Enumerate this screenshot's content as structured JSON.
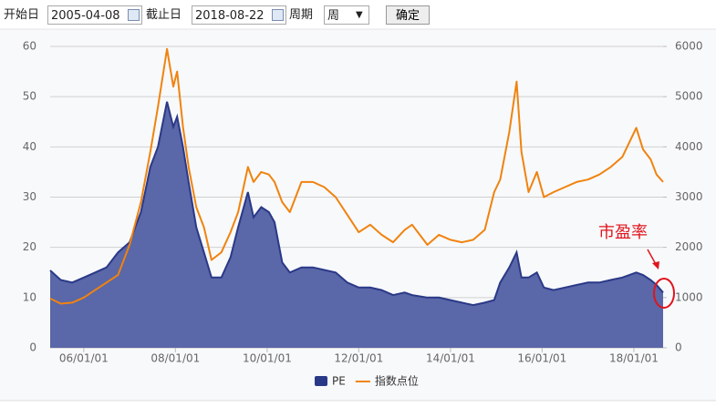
{
  "form": {
    "start_label": "开始日",
    "start_date": "2005-04-08",
    "end_label": "截止日",
    "end_date": "2018-08-22",
    "period_label": "周期",
    "period": "周",
    "submit": "确定"
  },
  "chart_data": {
    "type": "area-line",
    "annotation": "市盈率",
    "x": [
      "2005-04-08",
      "2005-07-01",
      "2005-10-01",
      "2006-01-01",
      "2006-04-01",
      "2006-07-01",
      "2006-10-01",
      "2007-01-01",
      "2007-04-01",
      "2007-06-15",
      "2007-08-15",
      "2007-10-26",
      "2007-12-15",
      "2008-01-15",
      "2008-03-01",
      "2008-04-15",
      "2008-06-15",
      "2008-08-15",
      "2008-10-15",
      "2009-01-01",
      "2009-03-15",
      "2009-05-15",
      "2009-08-01",
      "2009-09-15",
      "2009-11-15",
      "2010-01-15",
      "2010-03-01",
      "2010-05-01",
      "2010-07-01",
      "2010-10-01",
      "2011-01-01",
      "2011-04-01",
      "2011-07-01",
      "2011-10-01",
      "2012-01-01",
      "2012-04-01",
      "2012-07-01",
      "2012-10-01",
      "2013-01-01",
      "2013-03-01",
      "2013-07-01",
      "2013-10-01",
      "2014-01-01",
      "2014-04-01",
      "2014-07-01",
      "2014-10-01",
      "2014-12-15",
      "2015-02-01",
      "2015-04-15",
      "2015-06-12",
      "2015-07-20",
      "2015-09-15",
      "2015-11-20",
      "2016-01-15",
      "2016-04-01",
      "2016-07-01",
      "2016-10-01",
      "2017-01-01",
      "2017-04-01",
      "2017-07-01",
      "2017-10-01",
      "2018-01-20",
      "2018-03-15",
      "2018-05-15",
      "2018-07-01",
      "2018-08-22"
    ],
    "series": [
      {
        "name": "PE",
        "color": "#5a67a8",
        "line_color": "#2a3987",
        "kind": "area",
        "values": [
          15.4,
          13.5,
          13,
          14,
          15,
          16,
          19,
          21,
          27,
          36,
          40,
          49,
          44,
          46,
          40,
          33,
          24,
          19,
          14,
          14,
          18,
          24,
          31,
          26,
          28,
          27,
          25,
          17,
          15,
          16,
          16,
          15.5,
          15,
          13,
          12,
          12,
          11.5,
          10.5,
          11,
          10.5,
          10,
          10,
          9.5,
          9,
          8.5,
          9,
          9.5,
          13,
          16,
          19,
          14,
          14,
          15,
          12,
          11.5,
          12,
          12.5,
          13,
          13,
          13.5,
          14,
          15,
          14.5,
          13.5,
          12.5,
          11
        ]
      },
      {
        "name": "指数点位",
        "color": "#f0830f",
        "kind": "line",
        "axis": "y2",
        "values": [
          980,
          880,
          900,
          1000,
          1150,
          1300,
          1450,
          2050,
          2900,
          3900,
          4800,
          5950,
          5200,
          5500,
          4400,
          3600,
          2800,
          2400,
          1750,
          1900,
          2300,
          2700,
          3600,
          3300,
          3500,
          3450,
          3300,
          2900,
          2700,
          3300,
          3300,
          3200,
          3000,
          2650,
          2300,
          2450,
          2250,
          2100,
          2350,
          2450,
          2050,
          2250,
          2150,
          2100,
          2150,
          2350,
          3100,
          3350,
          4300,
          5300,
          3900,
          3100,
          3500,
          3000,
          3100,
          3200,
          3300,
          3350,
          3450,
          3600,
          3800,
          4380,
          3950,
          3750,
          3450,
          3300
        ]
      }
    ],
    "xlim": [
      "2005-04-08",
      "2018-08-22"
    ],
    "xticks": [
      {
        "value": "2006-01-01",
        "label": "06/01/01"
      },
      {
        "value": "2008-01-01",
        "label": "08/01/01"
      },
      {
        "value": "2010-01-01",
        "label": "10/01/01"
      },
      {
        "value": "2012-01-01",
        "label": "12/01/01"
      },
      {
        "value": "2014-01-01",
        "label": "14/01/01"
      },
      {
        "value": "2016-01-01",
        "label": "16/01/01"
      },
      {
        "value": "2018-01-01",
        "label": "18/01/01"
      }
    ],
    "ylim": [
      0,
      60
    ],
    "yticks": [
      0,
      10,
      20,
      30,
      40,
      50,
      60
    ],
    "y2lim": [
      0,
      6000
    ],
    "y2ticks": [
      0,
      1000,
      2000,
      3000,
      4000,
      5000,
      6000
    ],
    "grid": true
  }
}
